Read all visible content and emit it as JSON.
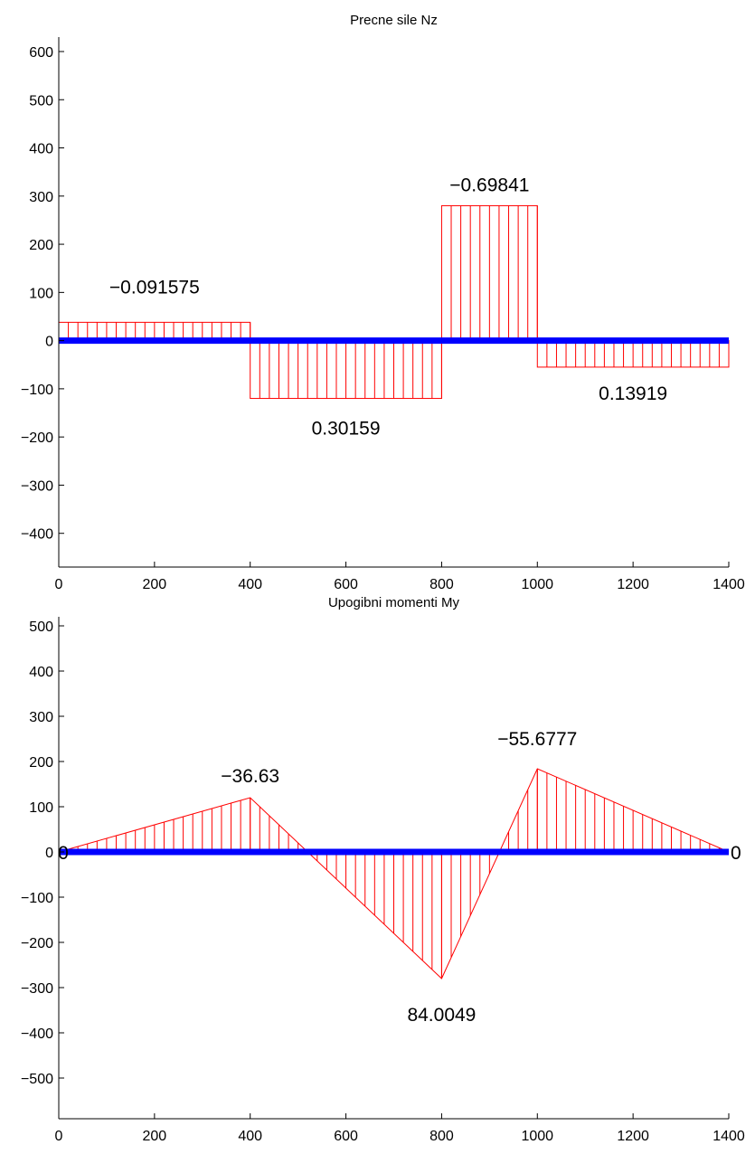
{
  "chart_data": [
    {
      "type": "area",
      "title": "Precne sile Nz",
      "xlim": [
        0,
        1400
      ],
      "ylim": [
        -470,
        630
      ],
      "xticks": [
        0,
        200,
        400,
        600,
        800,
        1000,
        1200,
        1400
      ],
      "yticks": [
        -400,
        -300,
        -200,
        -100,
        0,
        100,
        200,
        300,
        400,
        500,
        600
      ],
      "beam": {
        "x_start": 0,
        "x_end": 1400
      },
      "segments": [
        {
          "x0": 0,
          "x1": 400,
          "y0": 38,
          "y1": 38,
          "label": "−0.091575"
        },
        {
          "x0": 400,
          "x1": 800,
          "y0": -120,
          "y1": -120,
          "label": "0.30159"
        },
        {
          "x0": 800,
          "x1": 1000,
          "y0": 280,
          "y1": 280,
          "label": "−0.69841"
        },
        {
          "x0": 1000,
          "x1": 1400,
          "y0": -55,
          "y1": -55,
          "label": "0.13919"
        }
      ],
      "hatch_step": 20,
      "grid": false,
      "line_color": "#ff0000",
      "beam_color": "#0000ff"
    },
    {
      "type": "area",
      "title": "Upogibni momenti My",
      "xlim": [
        0,
        1400
      ],
      "ylim": [
        -590,
        520
      ],
      "xticks": [
        0,
        200,
        400,
        600,
        800,
        1000,
        1200,
        1400
      ],
      "yticks": [
        -500,
        -400,
        -300,
        -200,
        -100,
        0,
        100,
        200,
        300,
        400,
        500
      ],
      "beam": {
        "x_start": 0,
        "x_end": 1400
      },
      "points": [
        {
          "x": 0,
          "y": 0,
          "label": "0"
        },
        {
          "x": 400,
          "y": 120,
          "label": "−36.63"
        },
        {
          "x": 800,
          "y": -280,
          "label": "84.0049"
        },
        {
          "x": 1000,
          "y": 184,
          "label": "−55.6777"
        },
        {
          "x": 1400,
          "y": 0,
          "label": "0"
        }
      ],
      "hatch_step": 20,
      "grid": false,
      "line_color": "#ff0000",
      "beam_color": "#0000ff"
    }
  ]
}
